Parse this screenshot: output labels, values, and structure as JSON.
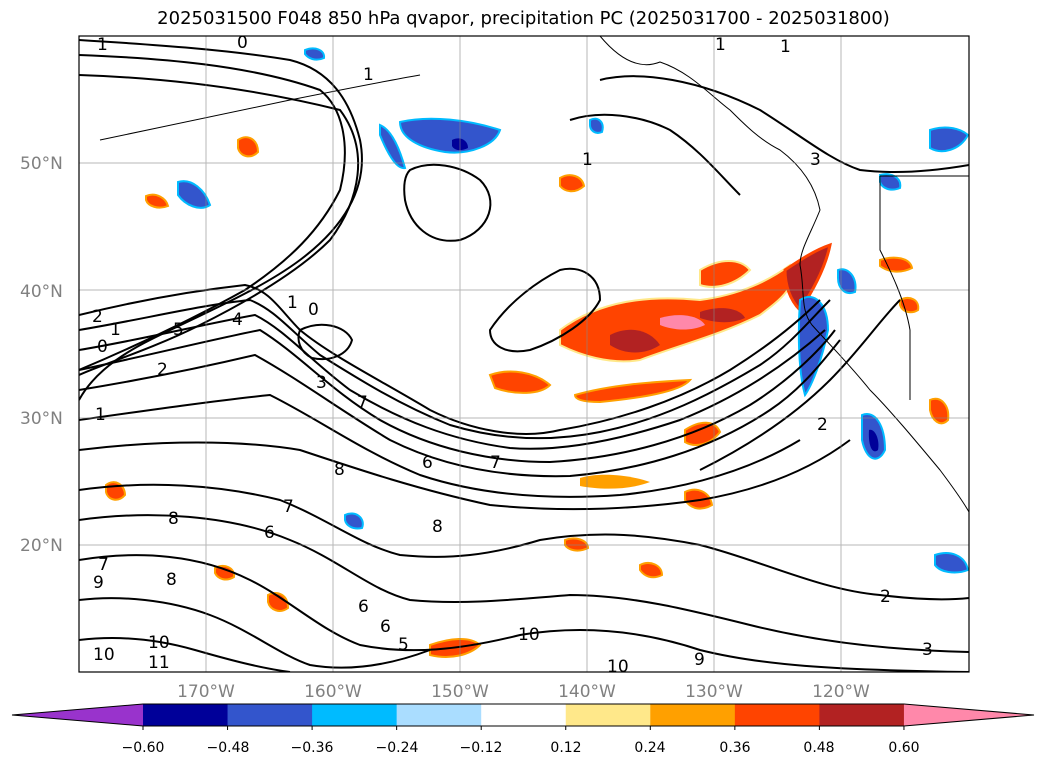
{
  "title": "2025031500 F048 850 hPa qvapor, precipitation PC (2025031700 - 2025031800)",
  "axes": {
    "lon_labels": [
      "170°W",
      "160°W",
      "150°W",
      "140°W",
      "130°W",
      "120°W"
    ],
    "lat_labels": [
      "50°N",
      "40°N",
      "30°N",
      "20°N"
    ]
  },
  "contour_labels": [
    "1",
    "0",
    "1",
    "1",
    "1",
    "3",
    "2",
    "1",
    "5",
    "4",
    "0",
    "1",
    "0",
    "2",
    "3",
    "7",
    "6",
    "7",
    "8",
    "7",
    "6",
    "8",
    "7",
    "8",
    "9",
    "6",
    "6",
    "5",
    "10",
    "10",
    "10",
    "11",
    "10",
    "9",
    "2",
    "2",
    "3",
    "1",
    "1",
    "8"
  ],
  "colorbar": {
    "tick_labels": [
      "−0.60",
      "−0.48",
      "−0.36",
      "−0.24",
      "−0.12",
      "0.12",
      "0.24",
      "0.36",
      "0.48",
      "0.60"
    ],
    "colors": [
      "#9933cc",
      "#000099",
      "#3355cc",
      "#00bbff",
      "#aaddff",
      "#ffffff",
      "#ffe88a",
      "#ffa000",
      "#ff4400",
      "#b22222",
      "#ff88aa"
    ]
  }
}
